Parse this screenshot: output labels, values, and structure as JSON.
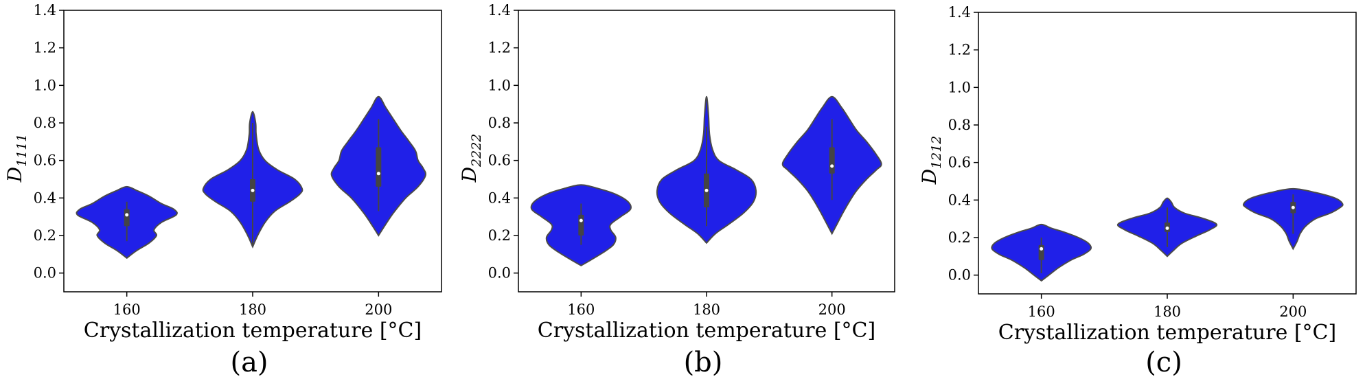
{
  "chart_data": [
    {
      "type": "violin",
      "panel_label": "(a)",
      "ylabel_main": "D",
      "ylabel_sub": "1111",
      "xlabel": "Crystallization temperature [°C]",
      "categories": [
        "160",
        "180",
        "200"
      ],
      "ylim": [
        -0.1,
        1.4
      ],
      "yticks": [
        "0.0",
        "0.2",
        "0.4",
        "0.6",
        "0.8",
        "1.0",
        "1.2",
        "1.4"
      ],
      "fill_color": "#2020e8",
      "series": [
        {
          "name": "160",
          "min": 0.08,
          "max": 0.46,
          "q1": 0.25,
          "median": 0.31,
          "q3": 0.34,
          "whisker_low": 0.17,
          "whisker_high": 0.38,
          "profile": [
            [
              0.08,
              0.0
            ],
            [
              0.12,
              0.2
            ],
            [
              0.16,
              0.45
            ],
            [
              0.2,
              0.6
            ],
            [
              0.23,
              0.55
            ],
            [
              0.27,
              0.7
            ],
            [
              0.31,
              1.0
            ],
            [
              0.34,
              0.95
            ],
            [
              0.37,
              0.7
            ],
            [
              0.41,
              0.45
            ],
            [
              0.44,
              0.2
            ],
            [
              0.46,
              0.0
            ]
          ]
        },
        {
          "name": "180",
          "min": 0.14,
          "max": 0.86,
          "q1": 0.38,
          "median": 0.44,
          "q3": 0.5,
          "whisker_low": 0.15,
          "whisker_high": 0.8,
          "profile": [
            [
              0.14,
              0.0
            ],
            [
              0.2,
              0.1
            ],
            [
              0.27,
              0.25
            ],
            [
              0.33,
              0.45
            ],
            [
              0.38,
              0.75
            ],
            [
              0.42,
              0.95
            ],
            [
              0.45,
              1.0
            ],
            [
              0.5,
              0.85
            ],
            [
              0.55,
              0.5
            ],
            [
              0.6,
              0.25
            ],
            [
              0.66,
              0.12
            ],
            [
              0.74,
              0.07
            ],
            [
              0.8,
              0.06
            ],
            [
              0.86,
              0.0
            ]
          ]
        },
        {
          "name": "200",
          "min": 0.2,
          "max": 0.94,
          "q1": 0.46,
          "median": 0.53,
          "q3": 0.67,
          "whisker_low": 0.33,
          "whisker_high": 0.82,
          "profile": [
            [
              0.2,
              0.0
            ],
            [
              0.25,
              0.12
            ],
            [
              0.32,
              0.3
            ],
            [
              0.4,
              0.55
            ],
            [
              0.46,
              0.8
            ],
            [
              0.52,
              0.95
            ],
            [
              0.56,
              0.9
            ],
            [
              0.6,
              0.8
            ],
            [
              0.65,
              0.75
            ],
            [
              0.7,
              0.62
            ],
            [
              0.76,
              0.45
            ],
            [
              0.82,
              0.3
            ],
            [
              0.88,
              0.15
            ],
            [
              0.94,
              0.0
            ]
          ]
        }
      ]
    },
    {
      "type": "violin",
      "panel_label": "(b)",
      "ylabel_main": "D",
      "ylabel_sub": "2222",
      "xlabel": "Crystallization temperature [°C]",
      "categories": [
        "160",
        "180",
        "200"
      ],
      "ylim": [
        -0.1,
        1.4
      ],
      "yticks": [
        "0.0",
        "0.2",
        "0.4",
        "0.6",
        "0.8",
        "1.0",
        "1.2",
        "1.4"
      ],
      "fill_color": "#2020e8",
      "series": [
        {
          "name": "160",
          "min": 0.04,
          "max": 0.47,
          "q1": 0.2,
          "median": 0.28,
          "q3": 0.31,
          "whisker_low": 0.15,
          "whisker_high": 0.37,
          "profile": [
            [
              0.04,
              0.0
            ],
            [
              0.07,
              0.2
            ],
            [
              0.11,
              0.45
            ],
            [
              0.15,
              0.65
            ],
            [
              0.19,
              0.7
            ],
            [
              0.23,
              0.6
            ],
            [
              0.26,
              0.6
            ],
            [
              0.3,
              0.8
            ],
            [
              0.34,
              1.0
            ],
            [
              0.38,
              0.95
            ],
            [
              0.42,
              0.7
            ],
            [
              0.45,
              0.35
            ],
            [
              0.47,
              0.0
            ]
          ]
        },
        {
          "name": "180",
          "min": 0.16,
          "max": 0.94,
          "q1": 0.35,
          "median": 0.44,
          "q3": 0.53,
          "whisker_low": 0.25,
          "whisker_high": 0.78,
          "profile": [
            [
              0.16,
              0.0
            ],
            [
              0.21,
              0.18
            ],
            [
              0.26,
              0.45
            ],
            [
              0.32,
              0.75
            ],
            [
              0.38,
              0.95
            ],
            [
              0.44,
              1.0
            ],
            [
              0.5,
              0.9
            ],
            [
              0.55,
              0.6
            ],
            [
              0.6,
              0.25
            ],
            [
              0.66,
              0.12
            ],
            [
              0.74,
              0.06
            ],
            [
              0.84,
              0.04
            ],
            [
              0.94,
              0.0
            ]
          ]
        },
        {
          "name": "200",
          "min": 0.21,
          "max": 0.94,
          "q1": 0.53,
          "median": 0.57,
          "q3": 0.67,
          "whisker_low": 0.39,
          "whisker_high": 0.82,
          "profile": [
            [
              0.21,
              0.0
            ],
            [
              0.26,
              0.1
            ],
            [
              0.32,
              0.22
            ],
            [
              0.38,
              0.35
            ],
            [
              0.44,
              0.5
            ],
            [
              0.5,
              0.7
            ],
            [
              0.55,
              0.9
            ],
            [
              0.58,
              1.0
            ],
            [
              0.63,
              0.9
            ],
            [
              0.7,
              0.7
            ],
            [
              0.76,
              0.5
            ],
            [
              0.82,
              0.35
            ],
            [
              0.88,
              0.2
            ],
            [
              0.94,
              0.0
            ]
          ]
        }
      ]
    },
    {
      "type": "violin",
      "panel_label": "(c)",
      "ylabel_main": "D",
      "ylabel_sub": "1212",
      "xlabel": "Crystallization temperature [°C]",
      "categories": [
        "160",
        "180",
        "200"
      ],
      "ylim": [
        -0.1,
        1.4
      ],
      "yticks": [
        "0.0",
        "0.2",
        "0.4",
        "0.6",
        "0.8",
        "1.0",
        "1.2",
        "1.4"
      ],
      "fill_color": "#2020e8",
      "series": [
        {
          "name": "160",
          "min": -0.03,
          "max": 0.27,
          "q1": 0.08,
          "median": 0.14,
          "q3": 0.16,
          "whisker_low": 0.01,
          "whisker_high": 0.2,
          "profile": [
            [
              -0.03,
              0.0
            ],
            [
              0.0,
              0.15
            ],
            [
              0.04,
              0.35
            ],
            [
              0.08,
              0.6
            ],
            [
              0.11,
              0.85
            ],
            [
              0.14,
              1.0
            ],
            [
              0.17,
              0.95
            ],
            [
              0.2,
              0.75
            ],
            [
              0.23,
              0.45
            ],
            [
              0.25,
              0.2
            ],
            [
              0.27,
              0.0
            ]
          ]
        },
        {
          "name": "180",
          "min": 0.1,
          "max": 0.41,
          "q1": 0.23,
          "median": 0.25,
          "q3": 0.28,
          "whisker_low": 0.15,
          "whisker_high": 0.36,
          "profile": [
            [
              0.1,
              0.0
            ],
            [
              0.13,
              0.12
            ],
            [
              0.17,
              0.3
            ],
            [
              0.21,
              0.6
            ],
            [
              0.24,
              0.85
            ],
            [
              0.27,
              1.0
            ],
            [
              0.3,
              0.75
            ],
            [
              0.33,
              0.35
            ],
            [
              0.36,
              0.15
            ],
            [
              0.39,
              0.08
            ],
            [
              0.41,
              0.0
            ]
          ]
        },
        {
          "name": "200",
          "min": 0.14,
          "max": 0.46,
          "q1": 0.33,
          "median": 0.36,
          "q3": 0.39,
          "whisker_low": 0.22,
          "whisker_high": 0.43,
          "profile": [
            [
              0.14,
              0.0
            ],
            [
              0.18,
              0.08
            ],
            [
              0.22,
              0.14
            ],
            [
              0.26,
              0.25
            ],
            [
              0.3,
              0.45
            ],
            [
              0.33,
              0.75
            ],
            [
              0.36,
              0.95
            ],
            [
              0.38,
              1.0
            ],
            [
              0.41,
              0.85
            ],
            [
              0.44,
              0.45
            ],
            [
              0.46,
              0.0
            ]
          ]
        }
      ]
    }
  ]
}
